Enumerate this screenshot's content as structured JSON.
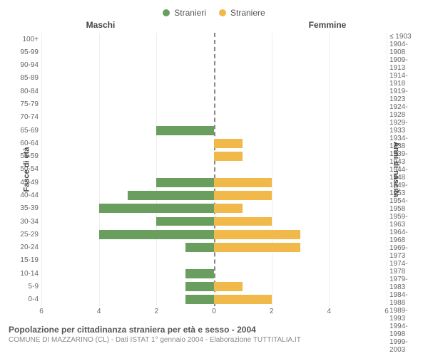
{
  "legend": {
    "male": {
      "label": "Stranieri",
      "color": "#6a9e5e"
    },
    "female": {
      "label": "Straniere",
      "color": "#f1b84a"
    }
  },
  "headers": {
    "left": "Maschi",
    "right": "Femmine"
  },
  "axisLabels": {
    "left": "Fasce di età",
    "right": "Anni di nascita"
  },
  "chart": {
    "type": "population-pyramid",
    "xmax": 6,
    "xticks": [
      0,
      2,
      4,
      6
    ],
    "grid_color": "#eeeeee",
    "zero_line_color": "#808000",
    "bar_height_pct": 70,
    "background_color": "#ffffff",
    "rows": [
      {
        "age": "100+",
        "birth": "≤ 1903",
        "m": 0,
        "f": 0
      },
      {
        "age": "95-99",
        "birth": "1904-1908",
        "m": 0,
        "f": 0
      },
      {
        "age": "90-94",
        "birth": "1909-1913",
        "m": 0,
        "f": 0
      },
      {
        "age": "85-89",
        "birth": "1914-1918",
        "m": 0,
        "f": 0
      },
      {
        "age": "80-84",
        "birth": "1919-1923",
        "m": 0,
        "f": 0
      },
      {
        "age": "75-79",
        "birth": "1924-1928",
        "m": 0,
        "f": 0
      },
      {
        "age": "70-74",
        "birth": "1929-1933",
        "m": 0,
        "f": 0
      },
      {
        "age": "65-69",
        "birth": "1934-1938",
        "m": 2,
        "f": 0
      },
      {
        "age": "60-64",
        "birth": "1939-1943",
        "m": 0,
        "f": 1
      },
      {
        "age": "55-59",
        "birth": "1944-1948",
        "m": 0,
        "f": 1
      },
      {
        "age": "50-54",
        "birth": "1949-1953",
        "m": 0,
        "f": 0
      },
      {
        "age": "45-49",
        "birth": "1954-1958",
        "m": 2,
        "f": 2
      },
      {
        "age": "40-44",
        "birth": "1959-1963",
        "m": 3,
        "f": 2
      },
      {
        "age": "35-39",
        "birth": "1964-1968",
        "m": 4,
        "f": 1
      },
      {
        "age": "30-34",
        "birth": "1969-1973",
        "m": 2,
        "f": 2
      },
      {
        "age": "25-29",
        "birth": "1974-1978",
        "m": 4,
        "f": 3
      },
      {
        "age": "20-24",
        "birth": "1979-1983",
        "m": 1,
        "f": 3
      },
      {
        "age": "15-19",
        "birth": "1984-1988",
        "m": 0,
        "f": 0
      },
      {
        "age": "10-14",
        "birth": "1989-1993",
        "m": 1,
        "f": 0
      },
      {
        "age": "5-9",
        "birth": "1994-1998",
        "m": 1,
        "f": 1
      },
      {
        "age": "0-4",
        "birth": "1999-2003",
        "m": 1,
        "f": 2
      }
    ]
  },
  "footer": {
    "title": "Popolazione per cittadinanza straniera per età e sesso - 2004",
    "subtitle": "COMUNE DI MAZZARINO (CL) - Dati ISTAT 1° gennaio 2004 - Elaborazione TUTTITALIA.IT"
  },
  "fonts": {
    "tick": 10,
    "label": 11,
    "header": 12,
    "legend": 12,
    "title": 12,
    "subtitle": 10
  }
}
